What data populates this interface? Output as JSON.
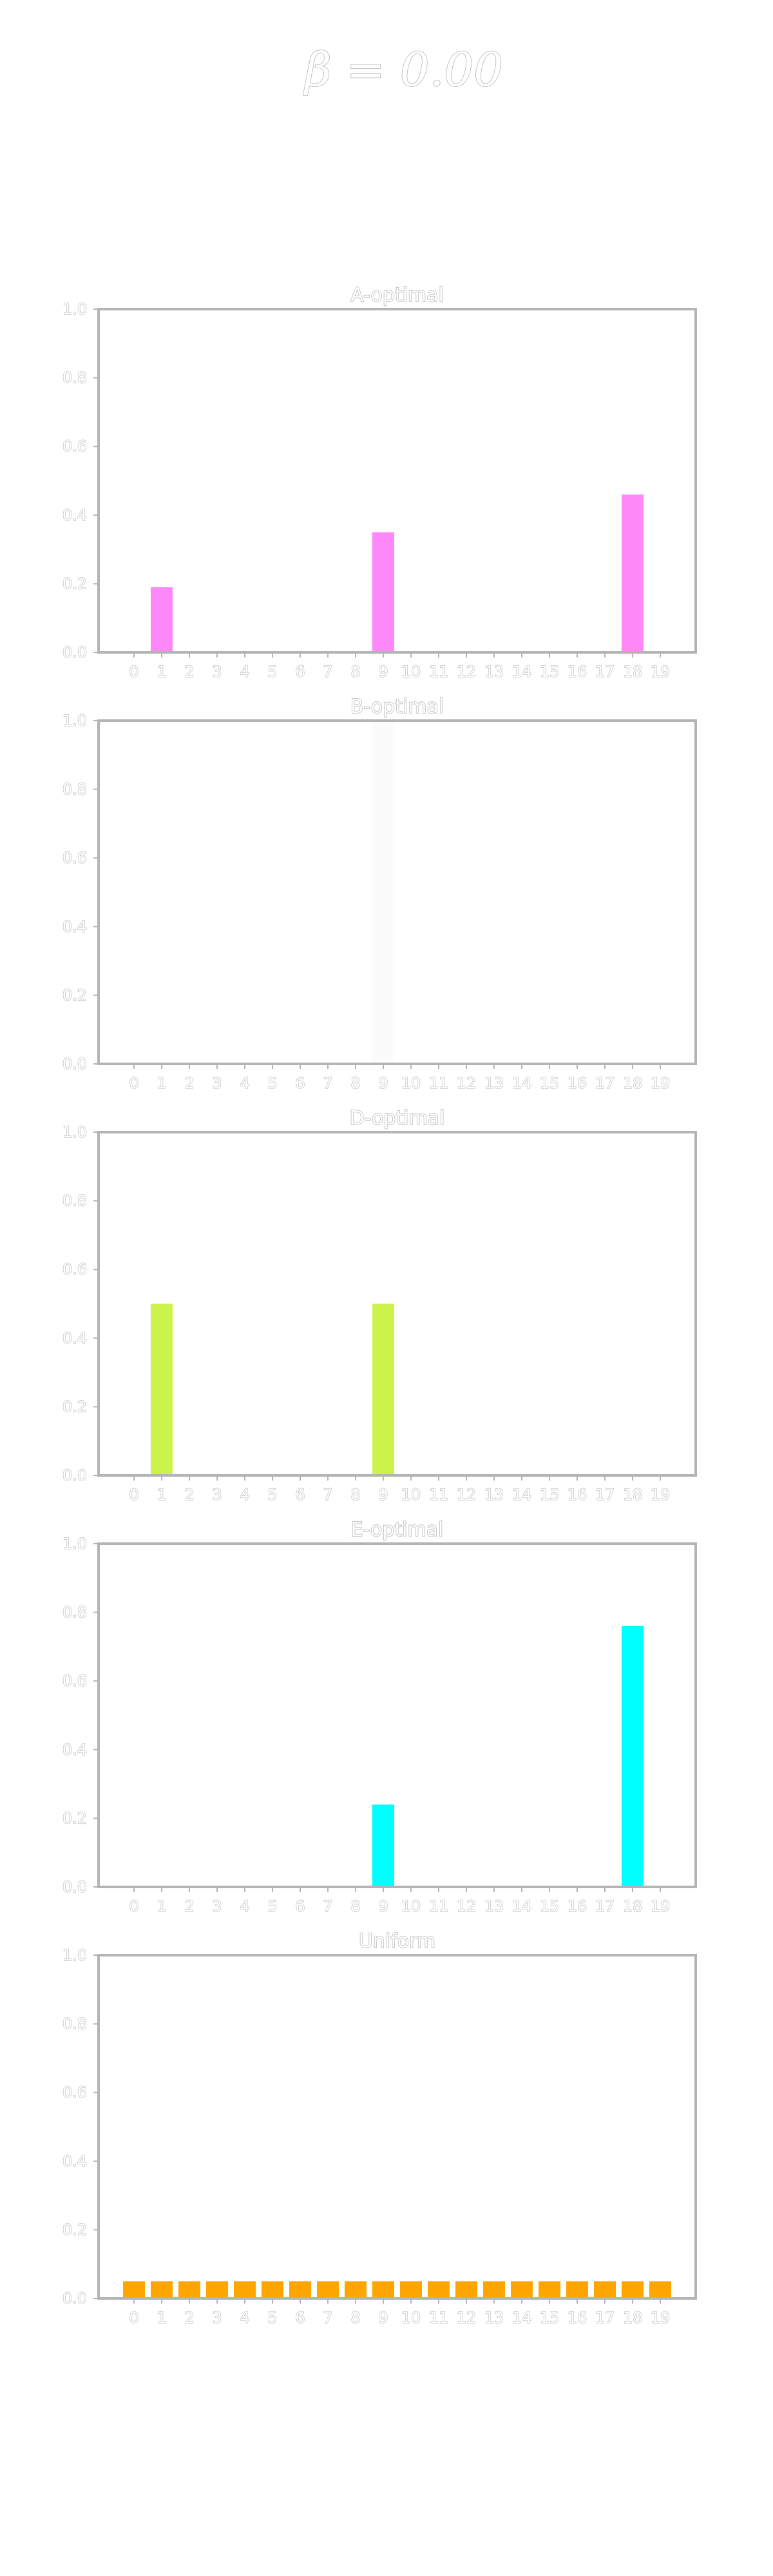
{
  "figure": {
    "suptitle": "β = 0.00"
  },
  "chart_data": [
    {
      "type": "bar",
      "title": "A-optimal",
      "color": "#ff88f8",
      "xlabel": "",
      "ylabel": "",
      "ylim": [
        0,
        1.0
      ],
      "yticks": [
        "0.0",
        "0.2",
        "0.4",
        "0.6",
        "0.8",
        "1.0"
      ],
      "categories": [
        "0",
        "1",
        "2",
        "3",
        "4",
        "5",
        "6",
        "7",
        "8",
        "9",
        "10",
        "11",
        "12",
        "13",
        "14",
        "15",
        "16",
        "17",
        "18",
        "19"
      ],
      "values": [
        0,
        0.19,
        0,
        0,
        0,
        0,
        0,
        0,
        0,
        0.35,
        0,
        0,
        0,
        0,
        0,
        0,
        0,
        0,
        0.46,
        0
      ],
      "grid": false
    },
    {
      "type": "bar",
      "title": "B-optimal",
      "color": "#fbfbfb",
      "xlabel": "",
      "ylabel": "",
      "ylim": [
        0,
        1.0
      ],
      "yticks": [
        "0.0",
        "0.2",
        "0.4",
        "0.6",
        "0.8",
        "1.0"
      ],
      "categories": [
        "0",
        "1",
        "2",
        "3",
        "4",
        "5",
        "6",
        "7",
        "8",
        "9",
        "10",
        "11",
        "12",
        "13",
        "14",
        "15",
        "16",
        "17",
        "18",
        "19"
      ],
      "values": [
        0,
        0,
        0,
        0,
        0,
        0,
        0,
        0,
        0,
        1.0,
        0,
        0,
        0,
        0,
        0,
        0,
        0,
        0,
        0,
        0
      ],
      "grid": false
    },
    {
      "type": "bar",
      "title": "D-optimal",
      "color": "#ccf24c",
      "xlabel": "",
      "ylabel": "",
      "ylim": [
        0,
        1.0
      ],
      "yticks": [
        "0.0",
        "0.2",
        "0.4",
        "0.6",
        "0.8",
        "1.0"
      ],
      "categories": [
        "0",
        "1",
        "2",
        "3",
        "4",
        "5",
        "6",
        "7",
        "8",
        "9",
        "10",
        "11",
        "12",
        "13",
        "14",
        "15",
        "16",
        "17",
        "18",
        "19"
      ],
      "values": [
        0,
        0.5,
        0,
        0,
        0,
        0,
        0,
        0,
        0,
        0.5,
        0,
        0,
        0,
        0,
        0,
        0,
        0,
        0,
        0,
        0
      ],
      "grid": false
    },
    {
      "type": "bar",
      "title": "E-optimal",
      "color": "#00ffff",
      "xlabel": "",
      "ylabel": "",
      "ylim": [
        0,
        1.0
      ],
      "yticks": [
        "0.0",
        "0.2",
        "0.4",
        "0.6",
        "0.8",
        "1.0"
      ],
      "categories": [
        "0",
        "1",
        "2",
        "3",
        "4",
        "5",
        "6",
        "7",
        "8",
        "9",
        "10",
        "11",
        "12",
        "13",
        "14",
        "15",
        "16",
        "17",
        "18",
        "19"
      ],
      "values": [
        0,
        0,
        0,
        0,
        0,
        0,
        0,
        0,
        0,
        0.24,
        0,
        0,
        0,
        0,
        0,
        0,
        0,
        0,
        0.76,
        0
      ],
      "grid": false
    },
    {
      "type": "bar",
      "title": "Uniform",
      "color": "#ffa500",
      "xlabel": "",
      "ylabel": "",
      "ylim": [
        0,
        1.0
      ],
      "yticks": [
        "0.0",
        "0.2",
        "0.4",
        "0.6",
        "0.8",
        "1.0"
      ],
      "categories": [
        "0",
        "1",
        "2",
        "3",
        "4",
        "5",
        "6",
        "7",
        "8",
        "9",
        "10",
        "11",
        "12",
        "13",
        "14",
        "15",
        "16",
        "17",
        "18",
        "19"
      ],
      "values": [
        0.05,
        0.05,
        0.05,
        0.05,
        0.05,
        0.05,
        0.05,
        0.05,
        0.05,
        0.05,
        0.05,
        0.05,
        0.05,
        0.05,
        0.05,
        0.05,
        0.05,
        0.05,
        0.05,
        0.05
      ],
      "grid": false
    }
  ]
}
